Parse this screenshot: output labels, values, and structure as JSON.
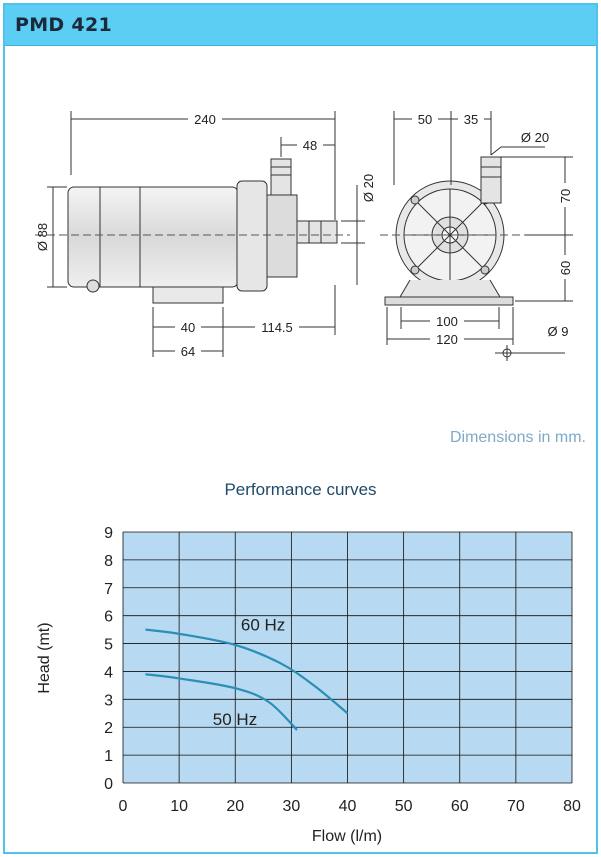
{
  "header": {
    "title": "PMD 421"
  },
  "drawing": {
    "side_view": {
      "length": "240",
      "outlet_offset": "48",
      "diameter": "Ø 88",
      "outlet_diameter": "Ø 20",
      "foot_width": "40",
      "foot_to_outlet": "114.5",
      "foot_length": "64"
    },
    "front_view": {
      "left_offset": "50",
      "right_offset": "35",
      "port_diameter": "Ø 20",
      "upper_height": "70",
      "lower_height": "60",
      "hole_spacing": "100",
      "base_width": "120",
      "hole_diameter": "Ø 9"
    },
    "note": "Dimensions in mm."
  },
  "performance": {
    "title": "Performance curves"
  },
  "chart_data": {
    "type": "line",
    "xlabel": "Flow (l/m)",
    "ylabel": "Head (mt)",
    "xlim": [
      0,
      80
    ],
    "ylim": [
      0,
      9
    ],
    "xticks": [
      0,
      10,
      20,
      30,
      40,
      50,
      60,
      70,
      80
    ],
    "yticks": [
      0,
      1,
      2,
      3,
      4,
      5,
      6,
      7,
      8,
      9
    ],
    "grid": true,
    "plot_bg": "#b7d9f1",
    "line_color": "#2a8fb5",
    "series": [
      {
        "name": "60 Hz",
        "x": [
          4,
          10,
          20,
          28,
          34,
          40
        ],
        "y": [
          5.5,
          5.35,
          4.95,
          4.3,
          3.5,
          2.5
        ]
      },
      {
        "name": "50 Hz",
        "x": [
          4,
          10,
          20,
          26,
          31
        ],
        "y": [
          3.9,
          3.75,
          3.4,
          2.9,
          1.9
        ]
      }
    ]
  }
}
